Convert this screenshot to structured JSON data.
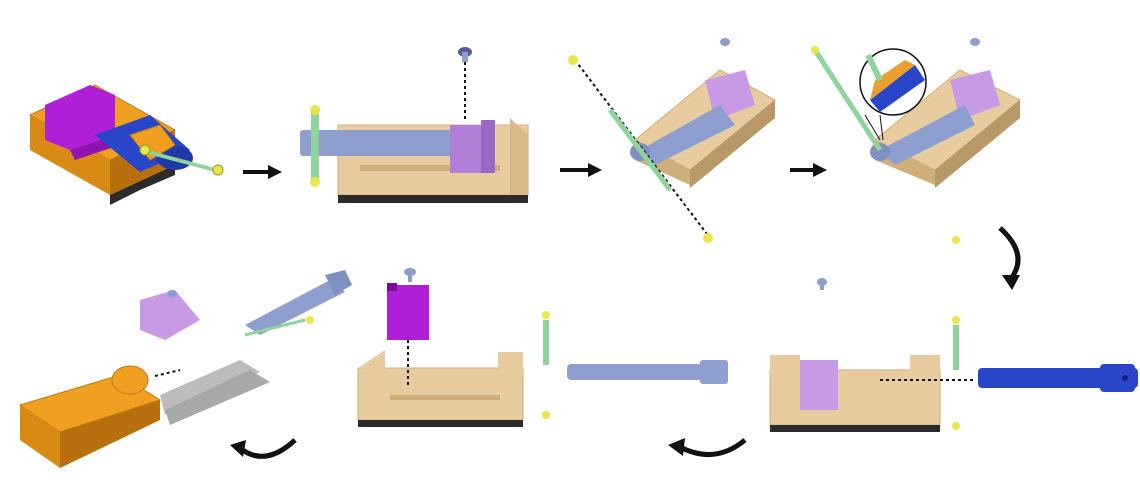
{
  "diagram": {
    "description_steps": [
      {
        "id": "step-1-assembled-vise"
      },
      {
        "id": "step-2-side-view-handle"
      },
      {
        "id": "step-3-handle-removal"
      },
      {
        "id": "step-4-pin-zoom"
      },
      {
        "id": "step-5-exploded-screw-and-pins"
      },
      {
        "id": "step-6-shaft-removed"
      },
      {
        "id": "step-7-jaw-removed"
      },
      {
        "id": "step-8-fully-disassembled"
      }
    ],
    "colors": {
      "body_tan": "#e8cca0",
      "body_tan_dark": "#cfae7c",
      "base_black": "#2b2b2b",
      "jaw_purple": "#b07fd8",
      "jaw_magenta": "#b01fd8",
      "shaft_blue": "#8e9fcf",
      "shaft_blue_strong": "#2946c8",
      "pin_green": "#8fd49a",
      "ball_yellow": "#e8e64a",
      "orange_body": "#f0a020",
      "rail_gray": "#b9b9b9",
      "arrow_black": "#111111"
    },
    "arrows": [
      {
        "id": "arrow-1-to-2",
        "direction": "right"
      },
      {
        "id": "arrow-2-to-3",
        "direction": "right"
      },
      {
        "id": "arrow-3-to-4",
        "direction": "right"
      },
      {
        "id": "arrow-4-to-5",
        "direction": "curve-down"
      },
      {
        "id": "arrow-5-to-6",
        "direction": "curve-left"
      },
      {
        "id": "arrow-6-to-7",
        "direction": "curve-left"
      },
      {
        "id": "arrow-7-to-8",
        "direction": "curve-left"
      }
    ]
  }
}
